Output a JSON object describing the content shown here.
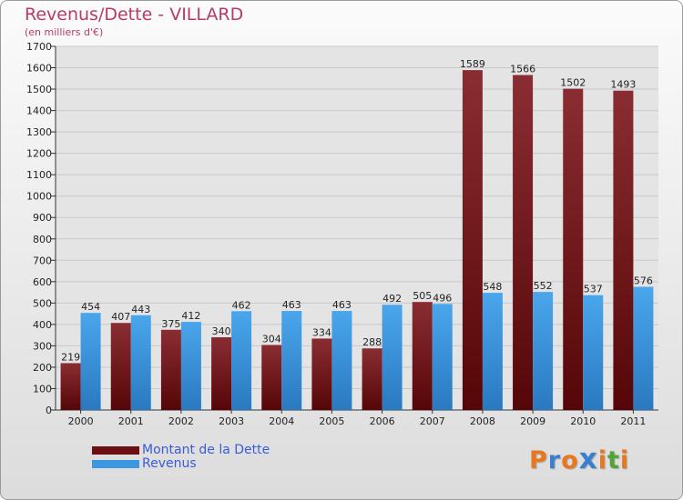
{
  "header": {
    "title": "Revenus/Dette - VILLARD",
    "subtitle": "(en milliers d'€)"
  },
  "chart_data": {
    "type": "bar",
    "categories": [
      "2000",
      "2001",
      "2002",
      "2003",
      "2004",
      "2005",
      "2006",
      "2007",
      "2008",
      "2009",
      "2010",
      "2011"
    ],
    "series": [
      {
        "name": "Montant de la Dette",
        "color": "#7a1418",
        "values": [
          219,
          407,
          375,
          340,
          304,
          334,
          288,
          505,
          1589,
          1566,
          1502,
          1493
        ]
      },
      {
        "name": "Revenus",
        "color": "#3d97e0",
        "values": [
          454,
          443,
          412,
          462,
          463,
          463,
          492,
          496,
          548,
          552,
          537,
          576
        ]
      }
    ],
    "ylim": [
      0,
      1700
    ],
    "yticks": [
      0,
      100,
      200,
      300,
      400,
      500,
      600,
      700,
      800,
      900,
      1000,
      1100,
      1200,
      1300,
      1400,
      1500,
      1600,
      1700
    ],
    "grid": true,
    "legend_position": "bottom-left"
  },
  "legend": {
    "items": [
      {
        "label": "Montant de la Dette",
        "color": "#6b0f12"
      },
      {
        "label": "Revenus",
        "color": "#3d97e0"
      }
    ]
  },
  "logo": {
    "letters": [
      "P",
      "r",
      "o",
      "x",
      "i",
      "t",
      "i"
    ],
    "colors": [
      "#e8771f",
      "#3a7fd0",
      "#e8771f",
      "#3a7fd0",
      "#e8771f",
      "#53a33b",
      "#e8771f"
    ]
  }
}
